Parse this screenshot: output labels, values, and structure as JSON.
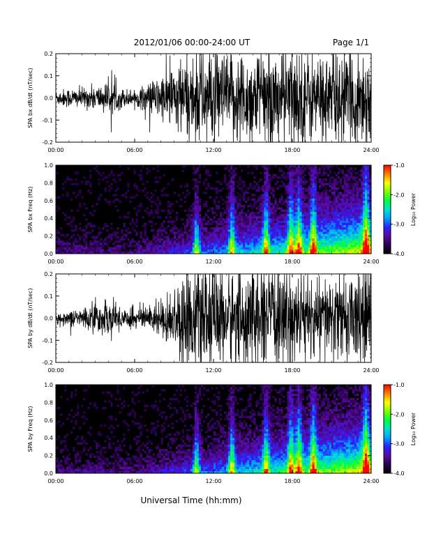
{
  "header": {
    "title": "2012/01/06  00:00-24:00 UT",
    "page": "Page 1/1"
  },
  "colors": {
    "trace": "#000000",
    "background": "#ffffff",
    "colormap": [
      "#000000",
      "#2a0050",
      "#5a0aa0",
      "#2a20ff",
      "#00a0ff",
      "#00e0d0",
      "#00ff40",
      "#80ff00",
      "#ffff00",
      "#ff8000",
      "#ff0000"
    ]
  },
  "x_axis": {
    "label": "Universal Time (hh:mm)",
    "ticks": [
      "00:00",
      "06:00",
      "12:00",
      "18:00",
      "24:00"
    ],
    "range_hours": [
      0,
      24
    ]
  },
  "colorbar": {
    "label": "Log₁₀ Power",
    "ticks": [
      "-1.0",
      "-2.0",
      "-3.0",
      "-4.0"
    ],
    "range": [
      -4,
      -1
    ]
  },
  "chart_data": [
    {
      "type": "line",
      "ylabel": "SPA bx dB/dt (nT/sec)",
      "ylim": [
        -0.2,
        0.2
      ],
      "yticks": [
        "0.2",
        "0.1",
        "0.0",
        "-0.1",
        "-0.2"
      ],
      "xlim": [
        0,
        24
      ],
      "envelope": {
        "hours": [
          0,
          1,
          2,
          3,
          4,
          5,
          6,
          7,
          8,
          9,
          10,
          11,
          12,
          13,
          14,
          15,
          16,
          17,
          18,
          19,
          20,
          21,
          22,
          23,
          24
        ],
        "amplitude": [
          0.03,
          0.04,
          0.04,
          0.05,
          0.06,
          0.04,
          0.03,
          0.06,
          0.09,
          0.14,
          0.16,
          0.2,
          0.2,
          0.17,
          0.2,
          0.18,
          0.19,
          0.2,
          0.2,
          0.2,
          0.17,
          0.2,
          0.18,
          0.2,
          0.2
        ]
      }
    },
    {
      "type": "heatmap",
      "ylabel": "SPA bx Freq (Hz)",
      "ylim": [
        0,
        1
      ],
      "yticks": [
        "1.0",
        "0.8",
        "0.6",
        "0.4",
        "0.2",
        "0.0"
      ],
      "xlim": [
        0,
        24
      ],
      "zlim": [
        -4,
        -1
      ]
    },
    {
      "type": "line",
      "ylabel": "SPA by dB/dt (nT/sec)",
      "ylim": [
        -0.2,
        0.2
      ],
      "yticks": [
        "0.2",
        "0.1",
        "0.0",
        "-0.1",
        "-0.2"
      ],
      "xlim": [
        0,
        24
      ],
      "envelope": {
        "hours": [
          0,
          1,
          2,
          3,
          4,
          5,
          6,
          7,
          8,
          9,
          10,
          11,
          12,
          13,
          14,
          15,
          16,
          17,
          18,
          19,
          20,
          21,
          22,
          23,
          24
        ],
        "amplitude": [
          0.02,
          0.03,
          0.04,
          0.06,
          0.07,
          0.05,
          0.04,
          0.05,
          0.07,
          0.12,
          0.2,
          0.2,
          0.2,
          0.2,
          0.2,
          0.2,
          0.2,
          0.2,
          0.2,
          0.17,
          0.15,
          0.18,
          0.15,
          0.2,
          0.2
        ]
      }
    },
    {
      "type": "heatmap",
      "ylabel": "SPA by Freq (Hz)",
      "ylim": [
        0,
        1
      ],
      "yticks": [
        "1.0",
        "0.8",
        "0.6",
        "0.4",
        "0.2",
        "0.0"
      ],
      "xlim": [
        0,
        24
      ],
      "zlim": [
        -4,
        -1
      ]
    }
  ]
}
